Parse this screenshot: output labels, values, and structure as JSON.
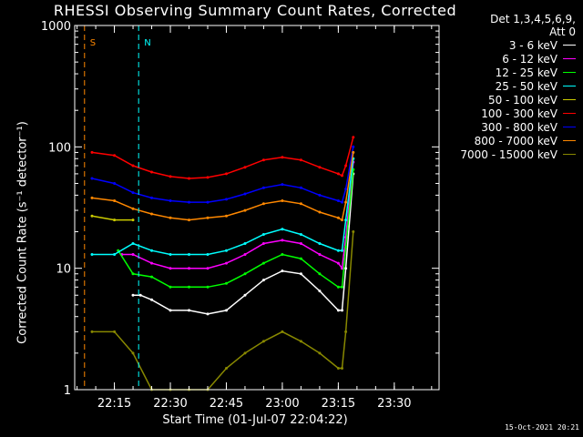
{
  "title": "RHESSI Observing Summary Count Rates, Corrected",
  "timestamp": "15-Oct-2021 20:21",
  "chart_data": {
    "type": "line",
    "title": "RHESSI Observing Summary Count Rates, Corrected",
    "xlabel": "Start Time (01-Jul-07 22:04:22)",
    "ylabel": "Corrected Count Rate (s⁻¹ detector⁻¹)",
    "yscale": "log",
    "ylim": [
      1,
      1000
    ],
    "xlim": [
      "22:04:22",
      "23:42:00"
    ],
    "ytick_labels": [
      "1",
      "10",
      "100",
      "1000"
    ],
    "xtick_labels": [
      "22:15",
      "22:30",
      "22:45",
      "23:00",
      "23:15",
      "23:30"
    ],
    "legend_header": [
      "Det 1,3,4,5,6,9,",
      "Att 0"
    ],
    "legend_position": "right",
    "markers": [
      {
        "label": "S",
        "time": "22:07:00",
        "color": "#ff8800"
      },
      {
        "label": "N",
        "time": "22:21:30",
        "color": "#00ffff"
      }
    ],
    "series": [
      {
        "name": "3 - 6 keV",
        "color": "#ffffff",
        "x": [
          "22:20",
          "22:22",
          "22:25",
          "22:30",
          "22:35",
          "22:40",
          "22:45",
          "22:50",
          "22:55",
          "23:00",
          "23:05",
          "23:10",
          "23:15",
          "23:16",
          "23:17",
          "23:19"
        ],
        "values": [
          6,
          6,
          5.5,
          4.5,
          4.5,
          4.2,
          4.5,
          6,
          8,
          9.5,
          9,
          6.5,
          4.5,
          4.5,
          10,
          60
        ]
      },
      {
        "name": "6 - 12 keV",
        "color": "#ff00ff",
        "x": [
          "22:17",
          "22:20",
          "22:25",
          "22:30",
          "22:35",
          "22:40",
          "22:45",
          "22:50",
          "22:55",
          "23:00",
          "23:05",
          "23:10",
          "23:15",
          "23:16",
          "23:17",
          "23:19"
        ],
        "values": [
          13,
          13,
          11,
          10,
          10,
          10,
          11,
          13,
          16,
          17,
          16,
          13,
          11,
          10,
          18,
          75
        ]
      },
      {
        "name": "12 - 25 keV",
        "color": "#00ff00",
        "x": [
          "22:16",
          "22:20",
          "22:25",
          "22:30",
          "22:35",
          "22:40",
          "22:45",
          "22:50",
          "22:55",
          "23:00",
          "23:05",
          "23:10",
          "23:15",
          "23:16",
          "23:17",
          "23:19"
        ],
        "values": [
          14,
          9,
          8.5,
          7,
          7,
          7,
          7.5,
          9,
          11,
          13,
          12,
          9,
          7,
          7,
          15,
          65
        ]
      },
      {
        "name": "25 - 50 keV",
        "color": "#00ffff",
        "x": [
          "22:09",
          "22:15",
          "22:20",
          "22:25",
          "22:30",
          "22:35",
          "22:40",
          "22:45",
          "22:50",
          "22:55",
          "23:00",
          "23:05",
          "23:10",
          "23:15",
          "23:16",
          "23:17",
          "23:19"
        ],
        "values": [
          13,
          13,
          16,
          14,
          13,
          13,
          13,
          14,
          16,
          19,
          21,
          19,
          16,
          14,
          14,
          25,
          80
        ]
      },
      {
        "name": "50 - 100 keV",
        "color": "#cccc00",
        "x": [
          "22:09",
          "22:15",
          "22:20"
        ],
        "values": [
          27,
          25,
          25
        ]
      },
      {
        "name": "100 - 300 keV",
        "color": "#ff0000",
        "x": [
          "22:09",
          "22:15",
          "22:20",
          "22:25",
          "22:30",
          "22:35",
          "22:40",
          "22:45",
          "22:50",
          "22:55",
          "23:00",
          "23:05",
          "23:10",
          "23:15",
          "23:16",
          "23:17",
          "23:19"
        ],
        "values": [
          90,
          85,
          70,
          62,
          57,
          55,
          56,
          60,
          68,
          78,
          82,
          78,
          68,
          60,
          58,
          70,
          120
        ]
      },
      {
        "name": "300 - 800 keV",
        "color": "#0000ff",
        "x": [
          "22:09",
          "22:15",
          "22:20",
          "22:25",
          "22:30",
          "22:35",
          "22:40",
          "22:45",
          "22:50",
          "22:55",
          "23:00",
          "23:05",
          "23:10",
          "23:15",
          "23:16",
          "23:17",
          "23:19"
        ],
        "values": [
          55,
          50,
          42,
          38,
          36,
          35,
          35,
          37,
          41,
          46,
          49,
          46,
          40,
          36,
          35,
          45,
          100
        ]
      },
      {
        "name": "800 - 7000 keV",
        "color": "#ff8800",
        "x": [
          "22:09",
          "22:15",
          "22:20",
          "22:25",
          "22:30",
          "22:35",
          "22:40",
          "22:45",
          "22:50",
          "22:55",
          "23:00",
          "23:05",
          "23:10",
          "23:15",
          "23:16",
          "23:17",
          "23:19"
        ],
        "values": [
          38,
          36,
          31,
          28,
          26,
          25,
          26,
          27,
          30,
          34,
          36,
          34,
          29,
          26,
          25,
          35,
          90
        ]
      },
      {
        "name": "7000 - 15000 keV",
        "color": "#888800",
        "x": [
          "22:09",
          "22:15",
          "22:20",
          "22:25",
          "22:30",
          "22:35",
          "22:40",
          "22:45",
          "22:50",
          "22:55",
          "23:00",
          "23:05",
          "23:10",
          "23:15",
          "23:16",
          "23:17",
          "23:19"
        ],
        "values": [
          3,
          3,
          2,
          1,
          1,
          1,
          1,
          1.5,
          2,
          2.5,
          3,
          2.5,
          2,
          1.5,
          1.5,
          3,
          20
        ]
      }
    ]
  }
}
